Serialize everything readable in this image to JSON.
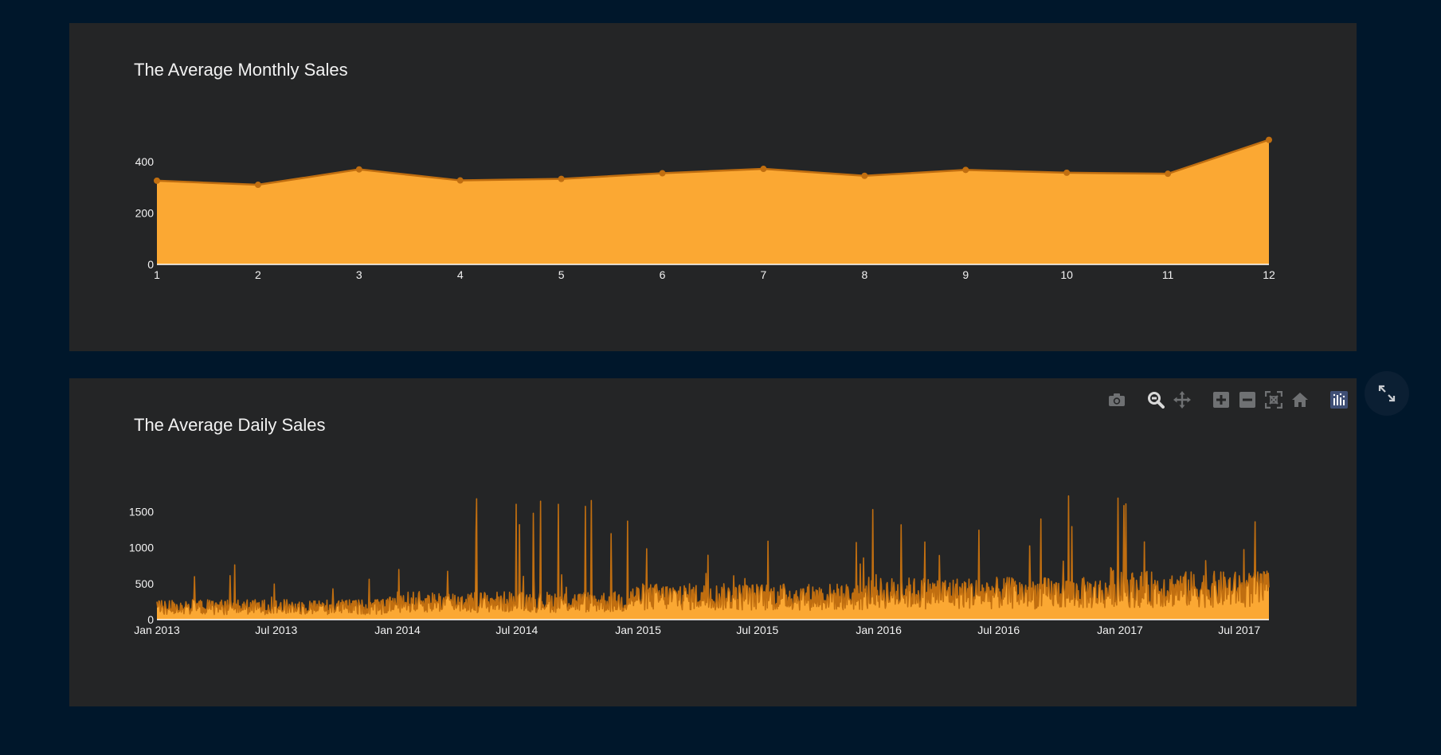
{
  "colors": {
    "page_bg": "#00172b",
    "panel_bg": "#242526",
    "fill": "#fba833",
    "line": "#c06e10",
    "axis_text": "#f2f2f2",
    "baseline": "#ffffff",
    "modebar_icon": "#6f7173",
    "modebar_active": "#d9d9d9",
    "plotly_logo": "#3f4f75"
  },
  "icons": {
    "modebar": [
      "camera-icon",
      "zoom-icon",
      "pan-icon",
      "zoom-in-icon",
      "zoom-out-icon",
      "autoscale-icon",
      "reset-axes-icon",
      "plotly-logo-icon"
    ],
    "fullscreen": "expand-icon"
  },
  "chart_data": [
    {
      "type": "area",
      "title": "The Average Monthly Sales",
      "xlabel": "",
      "ylabel": "",
      "x": [
        1,
        2,
        3,
        4,
        5,
        6,
        7,
        8,
        9,
        10,
        11,
        12
      ],
      "series": [
        {
          "values": [
            326,
            310,
            370,
            327,
            333,
            355,
            372,
            345,
            368,
            357,
            353,
            485
          ]
        }
      ],
      "x_tick_labels": [
        "1",
        "2",
        "3",
        "4",
        "5",
        "6",
        "7",
        "8",
        "9",
        "10",
        "11",
        "12"
      ],
      "y_ticks": [
        0,
        200,
        400
      ],
      "y_tick_labels": [
        "0",
        "200",
        "400"
      ],
      "xlim": [
        1,
        12
      ],
      "ylim": [
        0,
        490
      ],
      "markers": true,
      "grid": false,
      "legend": "none"
    },
    {
      "type": "area",
      "title": "The Average Daily Sales",
      "xlabel": "",
      "ylabel": "",
      "x_range": [
        "2013-01-01",
        "2017-08-15"
      ],
      "frequency": "daily",
      "x_ticks": [
        "2013-01-01",
        "2013-07-01",
        "2014-01-01",
        "2014-07-01",
        "2015-01-01",
        "2015-07-01",
        "2016-01-01",
        "2016-07-01",
        "2017-01-01",
        "2017-07-01"
      ],
      "x_tick_labels": [
        "Jan 2013",
        "Jul 2013",
        "Jan 2014",
        "Jul 2014",
        "Jan 2015",
        "Jul 2015",
        "Jan 2016",
        "Jul 2016",
        "Jan 2017",
        "Jul 2017"
      ],
      "y_ticks": [
        0,
        500,
        1000,
        1500
      ],
      "y_tick_labels": [
        "0",
        "500",
        "1000",
        "1500"
      ],
      "ylim": [
        0,
        1750
      ],
      "level_by_year": [
        {
          "year": 2013,
          "typical": 200,
          "max": 800
        },
        {
          "year": 2014,
          "typical": 280,
          "max": 1700
        },
        {
          "year": 2015,
          "typical": 360,
          "max": 1250
        },
        {
          "year": 2016,
          "typical": 420,
          "max": 1740
        },
        {
          "year": 2017,
          "typical": 480,
          "max": 1600
        }
      ],
      "notable_peaks": [
        {
          "date": "2014-05-01",
          "value": 1680
        },
        {
          "date": "2014-07-05",
          "value": 1320
        },
        {
          "date": "2016-10-15",
          "value": 1720
        },
        {
          "date": "2017-01-10",
          "value": 1610
        },
        {
          "date": "2017-07-25",
          "value": 1360
        }
      ],
      "grid": false,
      "legend": "none"
    }
  ]
}
